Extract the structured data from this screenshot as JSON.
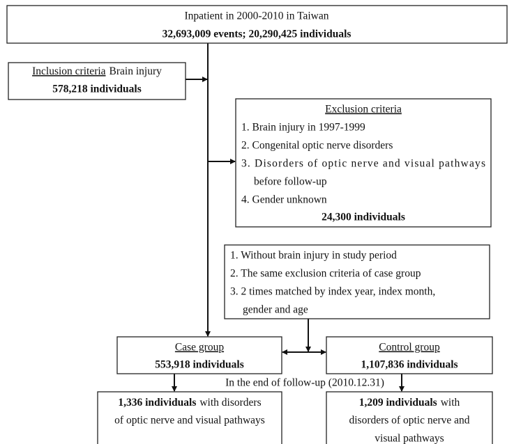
{
  "source": {
    "title": "Inpatient in 2000-2010 in Taiwan",
    "count": "32,693,009 events; 20,290,425 individuals"
  },
  "inclusion": {
    "label": "Inclusion criteria",
    "text": "Brain injury",
    "count": "578,218 individuals"
  },
  "exclusion": {
    "title": "Exclusion criteria",
    "lines": [
      "1. Brain injury in 1997-1999",
      "2. Congenital optic nerve disorders",
      "3. Disorders of optic nerve and visual pathways",
      "before follow-up",
      "4. Gender unknown"
    ],
    "count": "24,300 individuals"
  },
  "matching": {
    "lines": [
      "1. Without brain injury in study period",
      "2. The same exclusion criteria of case group",
      "3. 2 times matched by index year, index month,",
      "gender and age"
    ]
  },
  "case_group": {
    "title": "Case group",
    "count": "553,918 individuals"
  },
  "control_group": {
    "title": "Control group",
    "count": "1,107,836 individuals"
  },
  "follow_up": "In the end of follow-up (2010.12.31)",
  "case_outcome": {
    "count": "1,336 individuals",
    "lines": [
      "with disorders",
      "of optic nerve and visual pathways"
    ]
  },
  "control_outcome": {
    "count": "1,209 individuals",
    "lines": [
      "with",
      "disorders of optic nerve and",
      "visual pathways"
    ]
  }
}
